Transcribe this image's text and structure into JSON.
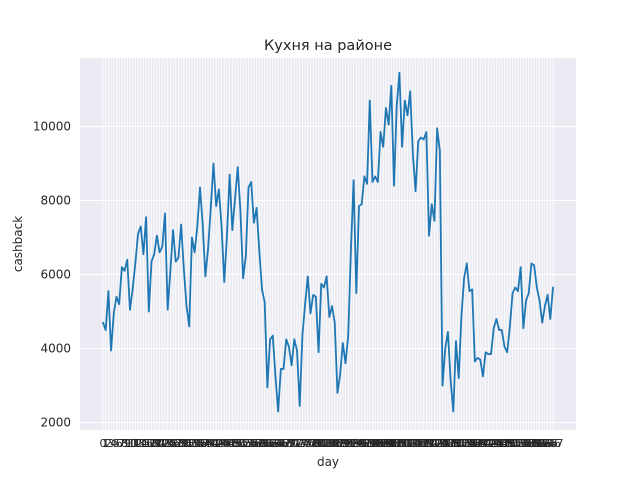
{
  "chart_data": {
    "type": "line",
    "title": "Кухня на районе",
    "xlabel": "day",
    "ylabel": "cashback",
    "ylim": [
      1800,
      11850
    ],
    "yticks": [
      2000,
      4000,
      6000,
      8000,
      10000
    ],
    "grid": true,
    "legend": "none",
    "style": {
      "background": "#eaeaf2",
      "grid_color": "#ffffff",
      "line_color": "#1f77b4"
    },
    "x_tick_labels_overlap": true,
    "series": [
      {
        "values": [
          4700,
          4500,
          5550,
          3950,
          4950,
          5400,
          5200,
          6200,
          6100,
          6400,
          5050,
          5600,
          6300,
          7100,
          7300,
          6550,
          7550,
          5000,
          6350,
          6550,
          7050,
          6600,
          6750,
          7650,
          5050,
          6100,
          7200,
          6350,
          6450,
          7350,
          6150,
          5150,
          4600,
          7000,
          6600,
          7300,
          8350,
          7350,
          5950,
          6700,
          7800,
          9000,
          7850,
          8300,
          7300,
          5800,
          7050,
          8700,
          7200,
          8050,
          8900,
          7700,
          5900,
          6500,
          8350,
          8500,
          7400,
          7800,
          6650,
          5600,
          5250,
          2950,
          4250,
          4350,
          3250,
          2300,
          3450,
          3450,
          4250,
          4050,
          3550,
          4250,
          3950,
          2450,
          4350,
          5200,
          5950,
          4950,
          5450,
          5400,
          3900,
          5750,
          5650,
          5950,
          4850,
          5150,
          4700,
          2800,
          3300,
          4150,
          3600,
          4350,
          6650,
          8550,
          5500,
          7850,
          7900,
          8650,
          8450,
          10700,
          8500,
          8650,
          8500,
          9850,
          9450,
          10500,
          10050,
          11100,
          8400,
          10550,
          11450,
          9450,
          10700,
          10300,
          10950,
          9250,
          8250,
          9600,
          9700,
          9650,
          9850,
          7050,
          7900,
          7450,
          9950,
          9350,
          3000,
          4000,
          4450,
          3150,
          2300,
          4200,
          3200,
          4850,
          5900,
          6300,
          5550,
          5600,
          3650,
          3750,
          3700,
          3250,
          3900,
          3850,
          3850,
          4550,
          4800,
          4500,
          4500,
          4050,
          3900,
          4600,
          5500,
          5650,
          5550,
          6200,
          4550,
          5300,
          5500,
          6300,
          6250,
          5650,
          5300,
          4700,
          5150,
          5450,
          4800,
          5650
        ]
      }
    ]
  }
}
